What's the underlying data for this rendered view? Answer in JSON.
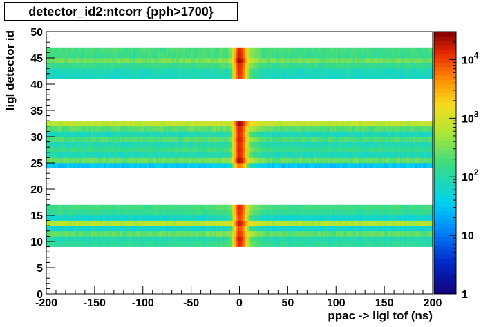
{
  "chart_data": {
    "type": "heatmap",
    "title": "detector_id2:ntcorr {pph>1700}",
    "xlabel": "ppac -> ligl tof (ns)",
    "ylabel": "ligl detector id",
    "xlim": [
      -200,
      200
    ],
    "ylim": [
      0,
      50
    ],
    "x_ticks": [
      "-200",
      "-150",
      "-100",
      "-50",
      "0",
      "50",
      "100",
      "150",
      "200"
    ],
    "y_ticks": [
      "0",
      "5",
      "10",
      "15",
      "20",
      "25",
      "30",
      "35",
      "40",
      "45",
      "50"
    ],
    "colorbar": {
      "scale": "log",
      "range": [
        1,
        30000
      ],
      "tick_labels": [
        {
          "base": "1",
          "exp": "",
          "value": 1
        },
        {
          "base": "10",
          "exp": "",
          "value": 10
        },
        {
          "base": "10",
          "exp": "2",
          "value": 100
        },
        {
          "base": "10",
          "exp": "3",
          "value": 1000
        },
        {
          "base": "10",
          "exp": "4",
          "value": 10000
        }
      ]
    },
    "rows": [
      {
        "id": 9,
        "background": 120,
        "peak": 12000
      },
      {
        "id": 10,
        "background": 90,
        "peak": 15000
      },
      {
        "id": 11,
        "background": 250,
        "peak": 10000
      },
      {
        "id": 12,
        "background": 60,
        "peak": 8000
      },
      {
        "id": 13,
        "background": 600,
        "peak": 14000
      },
      {
        "id": 14,
        "background": 60,
        "peak": 9000
      },
      {
        "id": 15,
        "background": 130,
        "peak": 11000
      },
      {
        "id": 16,
        "background": 170,
        "peak": 12000
      },
      {
        "id": 24,
        "background": 30,
        "peak": 5000
      },
      {
        "id": 25,
        "background": 260,
        "peak": 18000
      },
      {
        "id": 26,
        "background": 80,
        "peak": 12000
      },
      {
        "id": 27,
        "background": 150,
        "peak": 13000
      },
      {
        "id": 28,
        "background": 90,
        "peak": 12000
      },
      {
        "id": 29,
        "background": 200,
        "peak": 14000
      },
      {
        "id": 30,
        "background": 80,
        "peak": 12000
      },
      {
        "id": 31,
        "background": 220,
        "peak": 13000
      },
      {
        "id": 32,
        "background": 700,
        "peak": 20000
      },
      {
        "id": 41,
        "background": 70,
        "peak": 10000
      },
      {
        "id": 42,
        "background": 80,
        "peak": 11000
      },
      {
        "id": 43,
        "background": 150,
        "peak": 12000
      },
      {
        "id": 44,
        "background": 300,
        "peak": 20000
      },
      {
        "id": 45,
        "background": 160,
        "peak": 14000
      },
      {
        "id": 46,
        "background": 180,
        "peak": 12000
      }
    ]
  }
}
